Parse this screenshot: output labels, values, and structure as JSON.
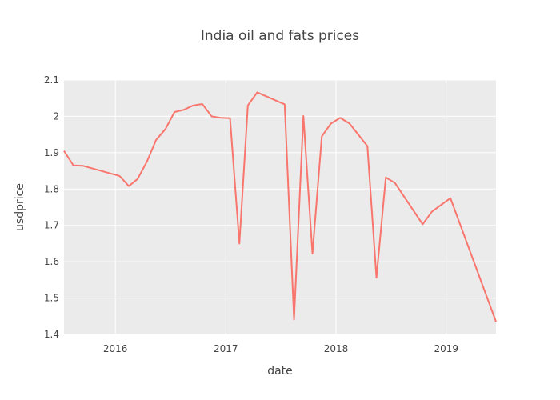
{
  "chart_data": {
    "type": "line",
    "title": "India oil and fats prices",
    "xlabel": "date",
    "ylabel": "usdprice",
    "xlim": [
      "2015-07-15",
      "2019-06-15"
    ],
    "ylim": [
      1.4,
      2.1
    ],
    "x_ticks": [
      "2016-01-01",
      "2017-01-01",
      "2018-01-01",
      "2019-01-01"
    ],
    "x_tick_labels": [
      "2016",
      "2017",
      "2018",
      "2019"
    ],
    "y_ticks": [
      1.4,
      1.5,
      1.6,
      1.7,
      1.8,
      1.9,
      2.0,
      2.1
    ],
    "y_tick_labels": [
      "1.4",
      "1.5",
      "1.6",
      "1.7",
      "1.8",
      "1.9",
      "2",
      "2.1"
    ],
    "grid": true,
    "background": "#ebebeb",
    "series": [
      {
        "color": "#f8766d",
        "x": [
          "2015-07-15",
          "2015-08-15",
          "2015-09-15",
          "2016-01-15",
          "2016-02-15",
          "2016-03-15",
          "2016-04-15",
          "2016-05-15",
          "2016-06-15",
          "2016-07-15",
          "2016-08-15",
          "2016-09-15",
          "2016-10-15",
          "2016-11-15",
          "2016-12-15",
          "2017-01-15",
          "2017-02-15",
          "2017-03-15",
          "2017-04-15",
          "2017-07-15",
          "2017-08-15",
          "2017-09-15",
          "2017-10-15",
          "2017-11-15",
          "2017-12-15",
          "2018-01-15",
          "2018-02-15",
          "2018-04-15",
          "2018-05-15",
          "2018-06-15",
          "2018-07-15",
          "2018-10-15",
          "2018-11-15",
          "2019-01-15",
          "2019-06-15"
        ],
        "values": [
          1.905,
          1.865,
          1.864,
          1.836,
          1.808,
          1.828,
          1.876,
          1.935,
          1.965,
          2.012,
          2.018,
          2.03,
          2.034,
          2.0,
          1.996,
          1.995,
          1.65,
          2.03,
          2.066,
          2.033,
          1.441,
          2.001,
          1.622,
          1.945,
          1.98,
          1.996,
          1.98,
          1.918,
          1.556,
          1.832,
          1.817,
          1.703,
          1.738,
          1.775,
          1.435
        ]
      }
    ]
  }
}
